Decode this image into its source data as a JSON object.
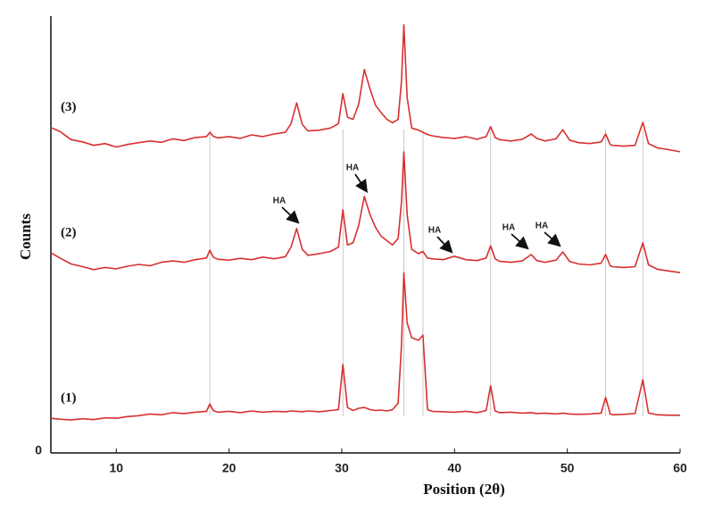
{
  "chart_data": {
    "type": "line",
    "xlabel": "Position (2θ)",
    "ylabel": "Counts",
    "xlim": [
      4.2,
      60
    ],
    "ylim": [
      0,
      100
    ],
    "xticks": [
      10,
      20,
      30,
      40,
      50,
      60
    ],
    "yticks": [
      0
    ],
    "peak_positions": [
      18.3,
      30.1,
      35.5,
      37.2,
      43.2,
      53.4,
      56.7
    ],
    "annotations": [
      "HA",
      "HA",
      "HA",
      "HA",
      "HA"
    ],
    "x": [
      4.2,
      5,
      6,
      7,
      8,
      9,
      10,
      11,
      12,
      13,
      14,
      15,
      16,
      17,
      18,
      18.3,
      18.6,
      19,
      20,
      21,
      22,
      23,
      24,
      25,
      25.5,
      26,
      26.5,
      27,
      28,
      29,
      29.7,
      30.1,
      30.5,
      31,
      31.5,
      32,
      32.5,
      33,
      33.5,
      34,
      34.5,
      35,
      35.3,
      35.5,
      35.8,
      36.2,
      36.8,
      37.2,
      37.6,
      38,
      39,
      40,
      41,
      42,
      42.8,
      43.2,
      43.6,
      44,
      45,
      46,
      46.8,
      47.3,
      48,
      49,
      49.6,
      50.2,
      51,
      52,
      53,
      53.4,
      53.8,
      54,
      55,
      56,
      56.7,
      57.2,
      58,
      59,
      60
    ],
    "series": [
      {
        "name": "(1)",
        "color": "#d8302f",
        "values": [
          8.0,
          7.8,
          7.6,
          7.9,
          7.7,
          8.1,
          8.0,
          8.4,
          8.6,
          9.0,
          8.8,
          9.3,
          9.1,
          9.4,
          9.6,
          11.3,
          9.8,
          9.4,
          9.6,
          9.3,
          9.7,
          9.4,
          9.6,
          9.5,
          9.7,
          9.6,
          9.5,
          9.7,
          9.5,
          9.8,
          10.0,
          20.4,
          10.5,
          9.8,
          10.3,
          10.5,
          10.0,
          9.8,
          9.9,
          9.7,
          10.0,
          11.5,
          25.0,
          41.6,
          30.0,
          26.6,
          26.0,
          27.2,
          10.0,
          9.6,
          9.5,
          9.4,
          9.6,
          9.3,
          9.8,
          15.5,
          9.7,
          9.3,
          9.4,
          9.2,
          9.3,
          9.1,
          9.2,
          9.0,
          9.2,
          9.0,
          8.9,
          9.0,
          9.2,
          12.8,
          9.0,
          8.8,
          8.9,
          9.1,
          16.9,
          9.2,
          8.8,
          8.7,
          8.7
        ]
      },
      {
        "name": "(2)",
        "color": "#d8302f",
        "values": [
          46.2,
          45.0,
          43.6,
          43.0,
          42.3,
          42.8,
          42.5,
          43.1,
          43.5,
          43.2,
          44.0,
          44.3,
          44.0,
          44.6,
          45.0,
          46.8,
          45.2,
          44.7,
          44.5,
          44.9,
          44.6,
          45.2,
          44.8,
          45.3,
          47.5,
          51.8,
          47.0,
          45.6,
          46.0,
          46.5,
          47.5,
          56.1,
          48.0,
          48.5,
          52.5,
          59.2,
          55.0,
          52.0,
          50.0,
          49.0,
          48.0,
          49.5,
          58.0,
          69.5,
          55.0,
          47.0,
          46.0,
          46.5,
          45.0,
          44.8,
          44.6,
          45.4,
          44.6,
          44.4,
          45.0,
          47.8,
          44.8,
          44.2,
          44.0,
          44.3,
          45.8,
          44.4,
          44.0,
          44.5,
          46.4,
          44.2,
          43.6,
          43.4,
          43.8,
          45.8,
          43.2,
          43.0,
          42.8,
          43.0,
          48.5,
          43.4,
          42.4,
          42.0,
          41.6
        ]
      },
      {
        "name": "(3)",
        "color": "#d8302f",
        "values": [
          75.1,
          74.2,
          72.3,
          71.8,
          71.0,
          71.4,
          70.6,
          71.2,
          71.6,
          72.0,
          71.7,
          72.5,
          72.1,
          72.8,
          73.0,
          74.0,
          73.1,
          72.7,
          73.0,
          72.6,
          73.4,
          73.0,
          73.6,
          74.0,
          76.0,
          80.8,
          75.8,
          74.3,
          74.5,
          75.0,
          76.0,
          82.9,
          77.5,
          77.0,
          80.5,
          88.5,
          84.0,
          80.2,
          78.5,
          77.0,
          76.2,
          77.0,
          86.0,
          98.8,
          82.0,
          75.0,
          74.5,
          74.0,
          73.5,
          73.2,
          72.8,
          72.6,
          73.0,
          72.4,
          73.0,
          75.3,
          72.8,
          72.3,
          72.0,
          72.4,
          73.6,
          72.6,
          72.0,
          72.5,
          74.6,
          72.2,
          71.6,
          71.4,
          71.8,
          73.6,
          71.2,
          71.0,
          70.8,
          71.0,
          76.3,
          71.4,
          70.4,
          70.0,
          69.5
        ]
      }
    ]
  }
}
